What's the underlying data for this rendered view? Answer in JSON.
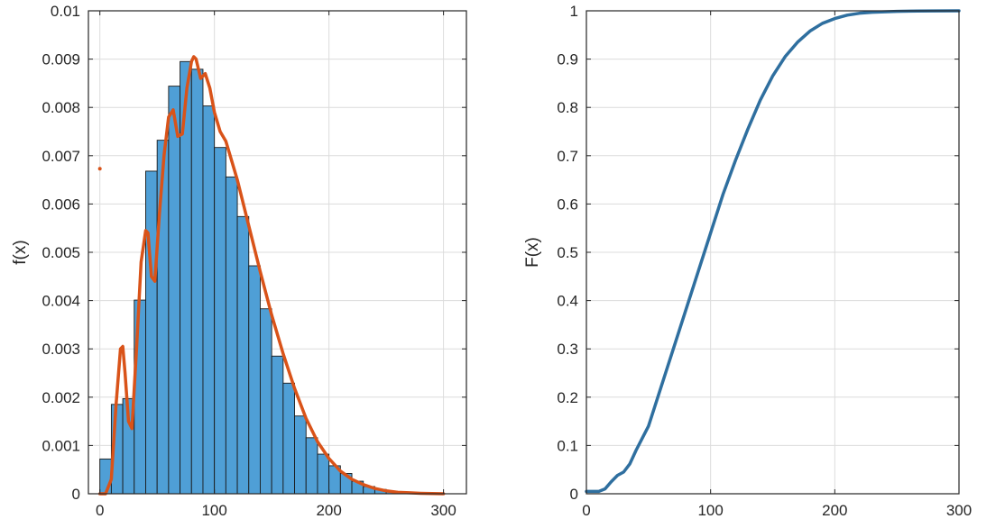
{
  "chart_data": [
    {
      "type": "bar",
      "title": "",
      "xlabel": "",
      "ylabel": "f(x)",
      "xlim": [
        -10,
        320
      ],
      "ylim": [
        0,
        0.01
      ],
      "xticks": [
        0,
        100,
        200,
        300
      ],
      "xtick_labels": [
        "0",
        "100",
        "200",
        "300"
      ],
      "yticks": [
        0,
        0.001,
        0.002,
        0.003,
        0.004,
        0.005,
        0.006,
        0.007,
        0.008,
        0.009,
        0.01
      ],
      "ytick_labels": [
        "0",
        "0.001",
        "0.002",
        "0.003",
        "0.004",
        "0.005",
        "0.006",
        "0.007",
        "0.008",
        "0.009",
        "0.01"
      ],
      "grid": true,
      "colors": {
        "bars": "#4f9fd6",
        "bar_edge": "#1a1a1a",
        "density_line": "#d95319"
      },
      "histogram": {
        "bin_width": 10,
        "bin_edges_start": 0,
        "values": [
          0.00072,
          0.00185,
          0.00197,
          0.00401,
          0.00668,
          0.00732,
          0.00844,
          0.00895,
          0.00879,
          0.00803,
          0.00717,
          0.00656,
          0.00574,
          0.00472,
          0.00383,
          0.00285,
          0.00229,
          0.00161,
          0.00116,
          0.00082,
          0.00058,
          0.00042,
          0.00026,
          0.00015,
          9e-05,
          5e-05,
          2e-05,
          1e-05,
          5e-06,
          2e-06
        ]
      },
      "density_curve": {
        "x": [
          0,
          5,
          10,
          14,
          18,
          20,
          22,
          25,
          28,
          32,
          36,
          40,
          42,
          45,
          48,
          52,
          56,
          60,
          64,
          68,
          72,
          76,
          80,
          82,
          84,
          88,
          92,
          96,
          100,
          105,
          110,
          115,
          120,
          130,
          140,
          150,
          160,
          170,
          180,
          190,
          200,
          210,
          220,
          230,
          240,
          250,
          260,
          270,
          280,
          290,
          300
        ],
        "y": [
          0.0,
          0.0,
          0.0003,
          0.0018,
          0.003,
          0.00305,
          0.0025,
          0.0015,
          0.00135,
          0.003,
          0.0048,
          0.00545,
          0.0054,
          0.0045,
          0.0044,
          0.0058,
          0.007,
          0.0078,
          0.00795,
          0.0074,
          0.00745,
          0.0084,
          0.00895,
          0.00905,
          0.009,
          0.0086,
          0.0087,
          0.0084,
          0.0079,
          0.0075,
          0.0073,
          0.0069,
          0.0065,
          0.00555,
          0.0046,
          0.0037,
          0.0029,
          0.00218,
          0.00156,
          0.00108,
          0.00073,
          0.00047,
          0.0003,
          0.00019,
          0.00011,
          6e-05,
          3e-05,
          2e-05,
          1e-05,
          5e-06,
          0.0
        ]
      },
      "outlier_point": {
        "x": 0,
        "y": 0.00673
      }
    },
    {
      "type": "line",
      "title": "",
      "xlabel": "",
      "ylabel": "F(x)",
      "xlim": [
        0,
        300
      ],
      "ylim": [
        0,
        1
      ],
      "xticks": [
        0,
        100,
        200,
        300
      ],
      "xtick_labels": [
        "0",
        "100",
        "200",
        "300"
      ],
      "yticks": [
        0,
        0.1,
        0.2,
        0.3,
        0.4,
        0.5,
        0.6,
        0.7,
        0.8,
        0.9,
        1
      ],
      "ytick_labels": [
        "0",
        "0.1",
        "0.2",
        "0.3",
        "0.4",
        "0.5",
        "0.6",
        "0.7",
        "0.8",
        "0.9",
        "1"
      ],
      "grid": true,
      "colors": {
        "line": "#2f6f9f"
      },
      "series": [
        {
          "x": [
            0,
            10,
            15,
            20,
            25,
            30,
            35,
            40,
            45,
            50,
            55,
            60,
            65,
            70,
            80,
            90,
            100,
            110,
            120,
            130,
            140,
            150,
            160,
            170,
            180,
            190,
            200,
            210,
            220,
            230,
            240,
            250,
            260,
            280,
            300
          ],
          "y": [
            0.005,
            0.005,
            0.01,
            0.025,
            0.038,
            0.045,
            0.062,
            0.09,
            0.115,
            0.14,
            0.18,
            0.22,
            0.26,
            0.3,
            0.38,
            0.46,
            0.54,
            0.62,
            0.69,
            0.755,
            0.815,
            0.865,
            0.905,
            0.935,
            0.958,
            0.974,
            0.984,
            0.991,
            0.995,
            0.997,
            0.998,
            0.9988,
            0.9993,
            0.9998,
            1.0
          ]
        }
      ]
    }
  ]
}
